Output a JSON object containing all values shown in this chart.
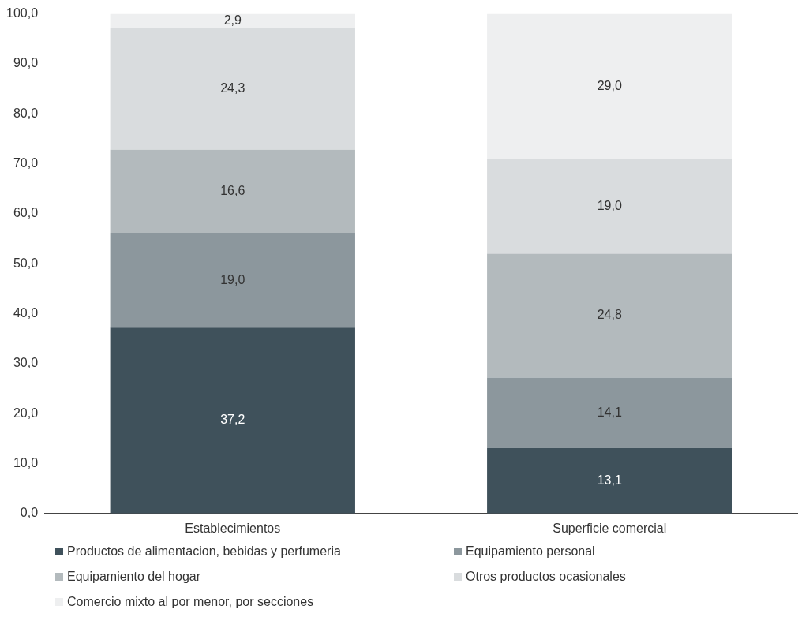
{
  "chart_data": {
    "type": "bar",
    "stacked": true,
    "categories": [
      "Establecimientos",
      "Superficie comercial"
    ],
    "series": [
      {
        "name": "Productos de alimentacion, bebidas y perfumeria",
        "color": "#3f515b",
        "values": [
          37.2,
          13.1
        ],
        "value_labels": [
          "37,2",
          "13,1"
        ]
      },
      {
        "name": "Equipamiento personal",
        "color": "#8c979d",
        "values": [
          19.0,
          14.1
        ],
        "value_labels": [
          "19,0",
          "14,1"
        ]
      },
      {
        "name": "Equipamiento del hogar",
        "color": "#b3babd",
        "values": [
          16.6,
          24.8
        ],
        "value_labels": [
          "16,6",
          "24,8"
        ]
      },
      {
        "name": "Otros productos ocasionales",
        "color": "#d9dcde",
        "values": [
          24.3,
          19.0
        ],
        "value_labels": [
          "24,3",
          "19,0"
        ]
      },
      {
        "name": "Comercio mixto al por menor, por secciones",
        "color": "#eeeff0",
        "values": [
          2.9,
          29.0
        ],
        "value_labels": [
          "2,9",
          "29,0"
        ]
      }
    ],
    "ylim": [
      0,
      100
    ],
    "yticks": [
      {
        "value": 0,
        "label": "0,0"
      },
      {
        "value": 10,
        "label": "10,0"
      },
      {
        "value": 20,
        "label": "20,0"
      },
      {
        "value": 30,
        "label": "30,0"
      },
      {
        "value": 40,
        "label": "40,0"
      },
      {
        "value": 50,
        "label": "50,0"
      },
      {
        "value": 60,
        "label": "60,0"
      },
      {
        "value": 70,
        "label": "70,0"
      },
      {
        "value": 80,
        "label": "80,0"
      },
      {
        "value": 90,
        "label": "90,0"
      },
      {
        "value": 100,
        "label": "100,0"
      }
    ],
    "grid": false,
    "legend": "bottom"
  }
}
